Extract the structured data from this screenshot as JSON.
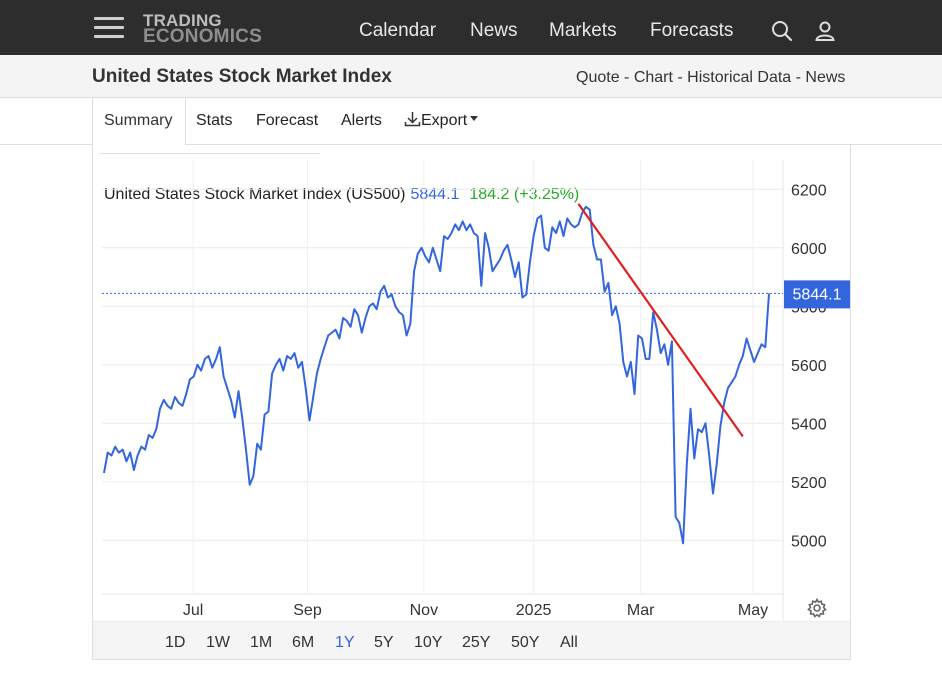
{
  "header": {
    "logo_line1": "TRADING",
    "logo_line2": "ECONOMICS",
    "nav": [
      "Calendar",
      "News",
      "Markets",
      "Forecasts"
    ]
  },
  "page": {
    "title": "United States Stock Market Index",
    "links": [
      "Quote",
      "Chart",
      "Historical Data",
      "News"
    ]
  },
  "tabs": [
    "Summary",
    "Stats",
    "Forecast",
    "Alerts",
    "Export"
  ],
  "chart_data": {
    "type": "line",
    "title": "United States Stock Market Index (US500)",
    "last_value": "5844.1",
    "change": "184.2 (+3.25%)",
    "current_label": "5844.1",
    "x_ticks": [
      "Jul",
      "Sep",
      "Nov",
      "2025",
      "Mar",
      "May"
    ],
    "y_ticks": [
      "6200",
      "6000",
      "5800",
      "5600",
      "5400",
      "5200",
      "5000"
    ],
    "ylim": [
      4820,
      6300
    ],
    "grid": true,
    "line_color": "#3366dd",
    "trendline_color": "#e02020",
    "series": [
      {
        "values": [
          5230,
          5300,
          5290,
          5320,
          5300,
          5310,
          5270,
          5300,
          5240,
          5290,
          5320,
          5310,
          5360,
          5350,
          5380,
          5450,
          5480,
          5460,
          5450,
          5490,
          5470,
          5460,
          5500,
          5550,
          5560,
          5600,
          5580,
          5620,
          5630,
          5590,
          5620,
          5660,
          5560,
          5520,
          5480,
          5420,
          5510,
          5420,
          5310,
          5190,
          5220,
          5330,
          5310,
          5430,
          5440,
          5570,
          5600,
          5620,
          5580,
          5630,
          5620,
          5640,
          5590,
          5610,
          5520,
          5410,
          5490,
          5570,
          5620,
          5660,
          5700,
          5710,
          5720,
          5690,
          5760,
          5750,
          5730,
          5790,
          5770,
          5710,
          5760,
          5800,
          5810,
          5790,
          5850,
          5870,
          5830,
          5840,
          5800,
          5780,
          5770,
          5700,
          5740,
          5920,
          5980,
          6000,
          5970,
          5950,
          6000,
          5960,
          5920,
          6040,
          6030,
          6050,
          6080,
          6060,
          6090,
          6060,
          6080,
          6050,
          6040,
          5870,
          6050,
          6000,
          5920,
          5940,
          5960,
          5990,
          6010,
          5960,
          5900,
          5950,
          5830,
          5840,
          5950,
          6040,
          6100,
          6110,
          6000,
          5990,
          6070,
          6050,
          6090,
          6040,
          6100,
          6080,
          6070,
          6080,
          6120,
          6140,
          6130,
          6010,
          5960,
          5960,
          5850,
          5880,
          5770,
          5800,
          5740,
          5610,
          5560,
          5610,
          5500,
          5700,
          5690,
          5620,
          5620,
          5780,
          5720,
          5640,
          5670,
          5600,
          5680,
          5080,
          5060,
          4990,
          5260,
          5450,
          5280,
          5380,
          5370,
          5400,
          5290,
          5160,
          5260,
          5390,
          5470,
          5520,
          5540,
          5560,
          5600,
          5630,
          5690,
          5650,
          5610,
          5640,
          5670,
          5660,
          5844.1
        ]
      }
    ],
    "trendline": {
      "from": {
        "index": 127,
        "value": 6150
      },
      "to": {
        "index": 171,
        "value": 5355
      }
    }
  },
  "ranges": {
    "items": [
      "1D",
      "1W",
      "1M",
      "6M",
      "1Y",
      "5Y",
      "10Y",
      "25Y",
      "50Y",
      "All"
    ],
    "selected": "1Y"
  },
  "icons": [
    "menu-icon",
    "search-icon",
    "user-icon",
    "download-icon",
    "caret-down-icon",
    "gear-icon"
  ]
}
